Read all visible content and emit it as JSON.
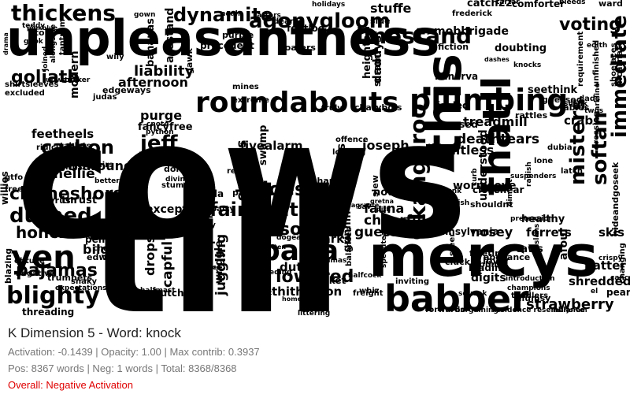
{
  "cloud": {
    "color": "#000000",
    "words": [
      "cows",
      "till",
      "unpleasantness",
      "mercys",
      "plumbing",
      "thatll",
      "roundabouts",
      "babber",
      "this",
      "yen",
      "durned",
      "clotheshorse",
      "papa",
      "blighty",
      "fairweather",
      "kangaroo",
      "softan",
      "immediate",
      "misters",
      "scissors",
      "carbon",
      "jeff",
      "agonygloom",
      "dynamite",
      "thickens",
      "linestand",
      "voting",
      "goliath",
      "strawberry",
      "lowered",
      "asome",
      "joes",
      "honcho",
      "pajamas",
      "liability",
      "afternoon",
      "eartharound",
      "feetheels",
      "purge",
      "fancyfree",
      "fivealarm",
      "joseph",
      "fauna",
      "cheerful",
      "guessing",
      "nosey",
      "deathtears",
      "shitless",
      "wormseye",
      "understood",
      "crabs",
      "treadmill",
      "shredded",
      "stuffe",
      "nellie",
      "skis",
      "ferrets",
      "healthy",
      "nought",
      "duties",
      "thitheryon",
      "capful",
      "dropsy",
      "juggling",
      "sharks",
      "bilge",
      "penalty",
      "excepted",
      "isare",
      "vino",
      "prisms",
      "chattels",
      "wriggle",
      "standards",
      "fittest",
      "grinnin",
      "afoul",
      "batter",
      "seethink",
      "minerva",
      "doubting",
      "scram",
      "heights",
      "arrows",
      "thrust",
      "hurryrush",
      "edward",
      "threading",
      "blazing",
      "digits",
      "taws",
      "leading",
      "bracket",
      "swamp",
      "charts",
      "rec",
      "paragon",
      "soda",
      "batty",
      "butcher",
      "fooled",
      "amused",
      "closenear",
      "shouldnt",
      "pennsylvania",
      "charybdis",
      "slew",
      "dubia",
      "pear",
      "rung",
      "mobbrigade",
      "fiction",
      "daddys",
      "loafers",
      "footloe",
      "precedent",
      "purple",
      "arestand",
      "bananas",
      "gawk",
      "tantrum",
      "wily",
      "modern",
      "iton",
      "gown",
      "dearly",
      "slue",
      "catch22",
      "comforter",
      "ward",
      "bleeds",
      "tartar",
      "frederick",
      "noah",
      "tatters",
      "holidays",
      "forwards",
      "bargaining",
      "residence resemblance",
      "marjoram",
      "freight",
      "inviting",
      "whiz",
      "homes",
      "albert",
      "feeding",
      "dogeatdog",
      "badrotten",
      "timbers",
      "donuts",
      "stumped",
      "diving",
      "edgeways",
      "judas",
      "gtfo",
      "freefall",
      "grips",
      "circuses",
      "ridicule",
      "tablets",
      "mines",
      "extreme",
      "truly",
      "offence",
      "lodging",
      "eater",
      "sav",
      "gretna",
      "pith",
      "crispy",
      "cancer",
      "guessed",
      "tables",
      "rattles",
      "titter",
      "requirement",
      "unfinished",
      "incarnate",
      "shoelaces",
      "hideandgoseek",
      "dressing",
      "changing",
      "devilhell",
      "chaff",
      "trumpets",
      "snaky",
      "expectations",
      "negative",
      "obtuse",
      "tucker",
      "upwards",
      "shirtsleeves",
      "excluded",
      "willies",
      "betters",
      "chairs",
      "gook",
      "teddy",
      "sunk",
      "fetish",
      "fleeting",
      "lover",
      "abeyance",
      "blimp",
      "cluck",
      "balances",
      "speedteam",
      "halfcock",
      "steer",
      "latch",
      "lone",
      "suspenders",
      "dimwit",
      "pretension",
      "radish",
      "slans",
      "introduction",
      "champions",
      "toddlers",
      "dads",
      "sneak",
      "clumsy",
      "squeak",
      "el",
      "edith",
      "dashes",
      "knocks",
      "twos",
      "markline",
      "curb",
      "heavenly",
      "blushes",
      "cnote",
      "python",
      "advice",
      "halfmast",
      "alongside",
      "joined",
      "drama",
      "pinkblue",
      "flagrante",
      "pyjamas",
      "littering",
      "sorry",
      "strung",
      "regulate"
    ]
  },
  "info": {
    "title": "K Dimension 5 - Word: knock",
    "stats": "Activation: -0.1439 | Opacity: 1.00 | Max contrib: 0.3937",
    "counts": "Pos: 8367 words | Neg: 1 words | Total: 8368/8368",
    "overall": "Overall: Negative Activation"
  },
  "colors": {
    "title": "#222222",
    "stats": "#777777",
    "overall": "#e00000"
  }
}
